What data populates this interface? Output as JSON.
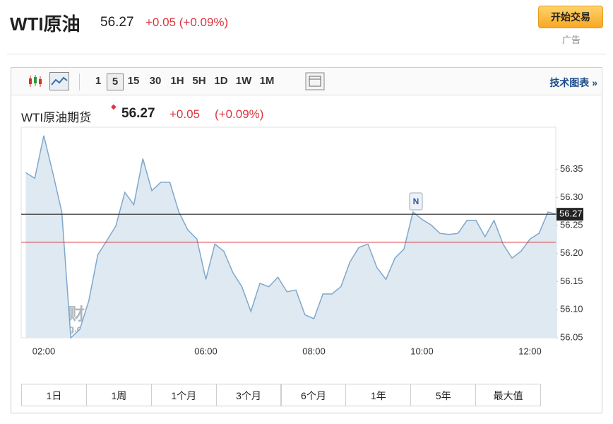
{
  "header": {
    "title": "WTI原油",
    "price": "56.27",
    "change": "+0.05 (+0.09%)",
    "trade_button": "开始交易",
    "ad_label": "广告"
  },
  "toolbar": {
    "intervals": [
      "1",
      "5",
      "15",
      "30",
      "1H",
      "5H",
      "1D",
      "1W",
      "1M"
    ],
    "selected_interval": "5",
    "technical_chart": "技术图表 »"
  },
  "chart_data": {
    "type": "area",
    "title": "WTI原油期货",
    "price": "56.27",
    "change": "+0.05",
    "change_pct": "(+0.09%)",
    "watermark": {
      "name": "英为财情",
      "site": "Investing.com"
    },
    "news_marker": "N",
    "categories": [
      null,
      null,
      "02:00",
      null,
      null,
      null,
      null,
      null,
      null,
      null,
      null,
      null,
      null,
      null,
      null,
      null,
      null,
      null,
      null,
      null,
      "06:00",
      null,
      null,
      null,
      null,
      null,
      null,
      null,
      null,
      null,
      null,
      null,
      "08:00",
      null,
      null,
      null,
      null,
      null,
      null,
      null,
      null,
      null,
      null,
      null,
      "10:00",
      null,
      null,
      null,
      null,
      null,
      null,
      null,
      null,
      null,
      null,
      null,
      "12:00",
      null,
      null,
      null
    ],
    "values": [
      56.344,
      56.334,
      56.41,
      56.344,
      56.274,
      56.05,
      56.065,
      56.116,
      56.198,
      56.223,
      56.249,
      56.309,
      56.287,
      56.369,
      56.312,
      56.327,
      56.327,
      56.274,
      56.242,
      56.226,
      56.154,
      56.217,
      56.204,
      56.166,
      56.141,
      56.097,
      56.147,
      56.141,
      56.158,
      56.132,
      56.135,
      56.091,
      56.084,
      56.128,
      56.128,
      56.141,
      56.185,
      56.211,
      56.217,
      56.175,
      56.154,
      56.192,
      56.208,
      56.274,
      56.261,
      56.251,
      56.236,
      56.234,
      56.236,
      56.259,
      56.259,
      56.23,
      56.259,
      56.217,
      56.192,
      56.204,
      56.226,
      56.236,
      56.274,
      56.27
    ],
    "color": "#7fa7cc",
    "fill": "#dfe9f1",
    "ylim": [
      56.05,
      56.425
    ],
    "yticks": [
      56.05,
      {
        "value": 56.1,
        "label": "56.10"
      },
      56.15,
      {
        "value": 56.2,
        "label": "56.20"
      },
      56.25,
      {
        "value": 56.3,
        "label": "56.30"
      },
      56.35
    ],
    "last_price": {
      "value": 56.27,
      "label": "56.27"
    },
    "last_price_color": "#222222",
    "reference_value": 56.22,
    "reference_color": "#d9363e"
  },
  "range_buttons": [
    "1日",
    "1周",
    "1个月",
    "3个月",
    "6个月",
    "1年",
    "5年",
    "最大值"
  ]
}
